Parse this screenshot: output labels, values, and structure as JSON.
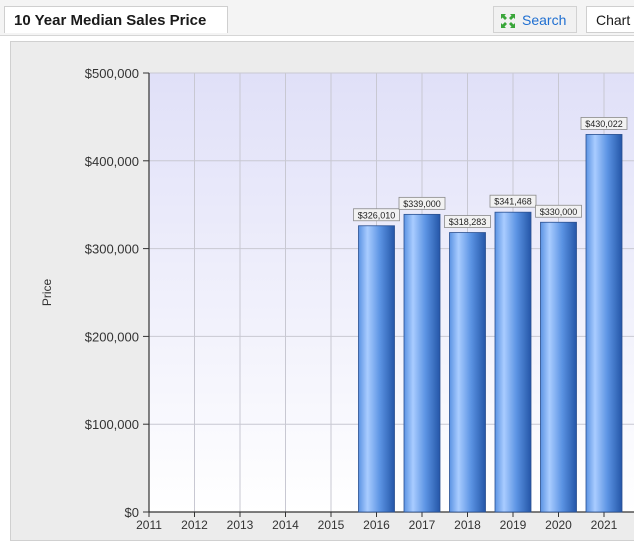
{
  "header": {
    "title": "10 Year Median Sales Price",
    "search_label": "Search",
    "chart_tab_label": "Chart",
    "search_icon": "expand-icon"
  },
  "colors": {
    "plot_bg_top": "#e0e0f8",
    "plot_bg_bottom": "#ffffff",
    "bar_light": "#a9ccff",
    "bar_mid": "#5b93e3",
    "bar_dark": "#2456a8",
    "accent": "#1f6fd1"
  },
  "chart_data": {
    "type": "bar",
    "title": "",
    "xlabel": "",
    "ylabel": "Price",
    "ylim": [
      0,
      500000
    ],
    "yticks": [
      0,
      100000,
      200000,
      300000,
      400000,
      500000
    ],
    "ytick_labels": [
      "$0",
      "$100,000",
      "$200,000",
      "$300,000",
      "$400,000",
      "$500,000"
    ],
    "categories": [
      "2011",
      "2012",
      "2013",
      "2014",
      "2015",
      "2016",
      "2017",
      "2018",
      "2019",
      "2020",
      "2021"
    ],
    "values": [
      null,
      null,
      null,
      null,
      null,
      326010,
      339000,
      318283,
      341468,
      330000,
      430022
    ],
    "data_labels": [
      "",
      "",
      "",
      "",
      "",
      "$326,010",
      "$339,000",
      "$318,283",
      "$341,468",
      "$330,000",
      "$430,022"
    ],
    "grid": true,
    "legend": "none"
  }
}
